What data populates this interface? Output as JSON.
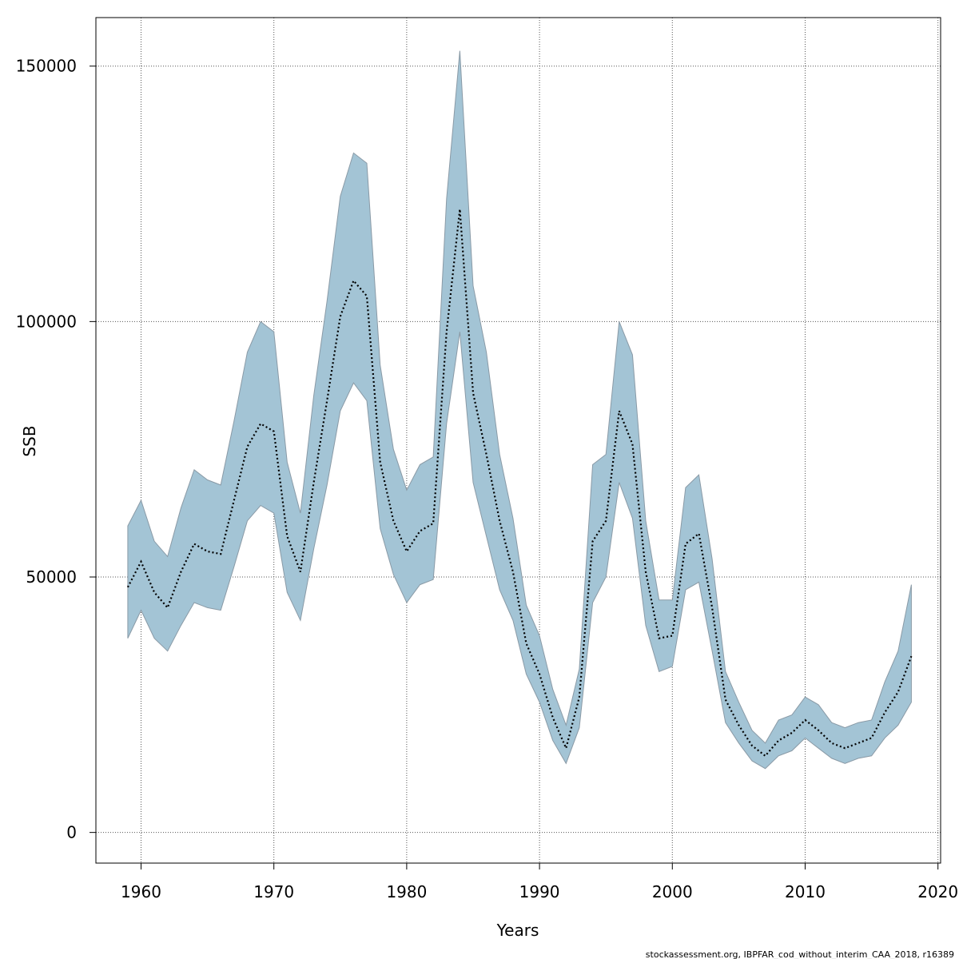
{
  "chart_data": {
    "type": "line",
    "title": "",
    "xlabel": "Years",
    "ylabel": "SSB",
    "xlim": [
      1956.6,
      2020.2
    ],
    "ylim": [
      -6000,
      159500
    ],
    "x_ticks": [
      1960,
      1970,
      1980,
      1990,
      2000,
      2010,
      2020
    ],
    "y_ticks": [
      0,
      50000,
      100000,
      150000
    ],
    "grid": true,
    "colors": {
      "band": "#a3c4d5",
      "band_edge": "#8a9aa6",
      "line": "#000000",
      "grid": "#555555"
    },
    "series": [
      {
        "x": [
          1959,
          1960,
          1961,
          1962,
          1963,
          1964,
          1965,
          1966,
          1967,
          1968,
          1969,
          1970,
          1971,
          1972,
          1973,
          1974,
          1975,
          1976,
          1977,
          1978,
          1979,
          1980,
          1981,
          1982,
          1983,
          1984,
          1985,
          1986,
          1987,
          1988,
          1989,
          1990,
          1991,
          1992,
          1993,
          1994,
          1995,
          1996,
          1997,
          1998,
          1999,
          2000,
          2001,
          2002,
          2003,
          2004,
          2005,
          2006,
          2007,
          2008,
          2009,
          2010,
          2011,
          2012,
          2013,
          2014,
          2015,
          2016,
          2017,
          2018
        ],
        "estimate": [
          48000,
          53000,
          47000,
          44000,
          51000,
          56500,
          55000,
          54500,
          65000,
          75500,
          80000,
          78500,
          58000,
          51000,
          68500,
          84500,
          101000,
          108000,
          105000,
          72500,
          61000,
          55000,
          59000,
          60500,
          98000,
          122000,
          86000,
          74000,
          61000,
          51000,
          37000,
          31000,
          22500,
          16500,
          26500,
          57000,
          61000,
          82500,
          76000,
          51000,
          38000,
          38500,
          56500,
          58500,
          44000,
          26000,
          21000,
          17000,
          15000,
          18000,
          19500,
          22000,
          20000,
          17500,
          16500,
          17500,
          18500,
          23500,
          27500,
          34500
        ],
        "lower": [
          38000,
          43500,
          38000,
          35500,
          40500,
          45000,
          44000,
          43500,
          52000,
          61000,
          64000,
          62500,
          47000,
          41500,
          55500,
          68000,
          82500,
          88000,
          84500,
          59500,
          50500,
          45000,
          48500,
          49500,
          80000,
          98000,
          68500,
          58000,
          47500,
          41500,
          31000,
          25500,
          18000,
          13500,
          20500,
          45000,
          50000,
          68500,
          61500,
          40500,
          31500,
          32500,
          47500,
          49000,
          35500,
          21500,
          17500,
          14000,
          12500,
          15000,
          16000,
          18500,
          16500,
          14500,
          13500,
          14500,
          15000,
          18500,
          21000,
          25500
        ],
        "upper": [
          60000,
          65000,
          57000,
          54000,
          63500,
          71000,
          69000,
          68000,
          80500,
          94000,
          100000,
          98000,
          72500,
          62500,
          85500,
          104000,
          124500,
          133000,
          131000,
          91500,
          75000,
          67000,
          72000,
          73500,
          124000,
          153000,
          107000,
          94000,
          74000,
          61500,
          44500,
          38500,
          28000,
          21000,
          32000,
          72000,
          74000,
          100000,
          93500,
          61000,
          45500,
          45500,
          67500,
          70000,
          53500,
          31500,
          25500,
          20000,
          17500,
          22000,
          23000,
          26500,
          25000,
          21500,
          20500,
          21500,
          22000,
          29500,
          35500,
          48500
        ]
      }
    ]
  },
  "footer": {
    "credit": "stockassessment.org, IBPFAR_cod_without_interim_CAA_2018, r16389"
  }
}
